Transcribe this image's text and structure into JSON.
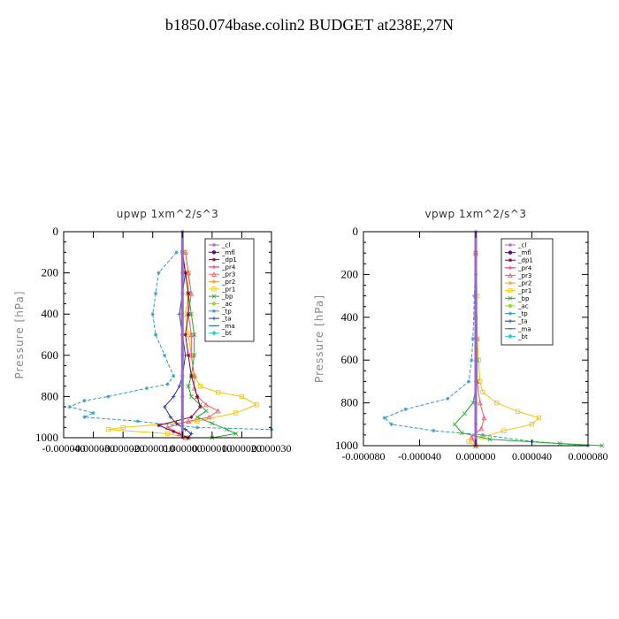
{
  "suptitle": "b1850.074base.colin2  BUDGET at238E,27N",
  "legend": [
    {
      "name": "_cl",
      "color": "#9966cc",
      "marker": "star"
    },
    {
      "name": "_mfl",
      "color": "#6b0099",
      "marker": "dot"
    },
    {
      "name": "_dp1",
      "color": "#880044",
      "marker": "star"
    },
    {
      "name": "_pr4",
      "color": "#e0185c",
      "marker": "plus"
    },
    {
      "name": "_pr3",
      "color": "#ff5566",
      "marker": "tri"
    },
    {
      "name": "_pr2",
      "color": "#ff9933",
      "marker": "star"
    },
    {
      "name": "_pr1",
      "color": "#f5c400",
      "marker": "square"
    },
    {
      "name": "_bp",
      "color": "#22aa22",
      "marker": "x"
    },
    {
      "name": "_ac",
      "color": "#99dd22",
      "marker": "dot"
    },
    {
      "name": "_tp",
      "color": "#3399cc",
      "marker": "star"
    },
    {
      "name": "_ta",
      "color": "#2233aa",
      "marker": "plus"
    },
    {
      "name": "_ma",
      "color": "#226699",
      "marker": "dash"
    },
    {
      "name": "_bt",
      "color": "#22ccdd",
      "marker": "diamond"
    }
  ],
  "chart_data": [
    {
      "type": "line",
      "title": "upwp   1xm^2/s^3",
      "ylabel": "Pressure [hPa]",
      "xlabel": "",
      "ylim": [
        1000,
        0
      ],
      "xlim": [
        -4e-05,
        3e-05
      ],
      "yticks": [
        0,
        200,
        400,
        600,
        800,
        1000
      ],
      "xtick_labels": [
        "-0.000040",
        "-0.000030",
        "-0.000020",
        "-0.000010",
        "0.000000",
        "0.000010",
        "0.000020",
        "0.000030"
      ],
      "xtick_values": [
        -4e-05,
        -3e-05,
        -2e-05,
        -1e-05,
        0,
        1e-05,
        2e-05,
        3e-05
      ],
      "legend_position": "top-right",
      "series": [
        {
          "name": "_pr1",
          "x": [
            1e-06,
            2e-06,
            2e-06,
            1e-06,
            2e-06,
            3e-06,
            4e-06,
            6e-06,
            1.2e-05,
            2e-05,
            2.5e-05,
            1.8e-05,
            5e-06,
            -2e-05,
            -2.5e-05,
            -5e-06,
            2e-06
          ],
          "y": [
            100,
            200,
            300,
            400,
            500,
            600,
            700,
            750,
            780,
            800,
            840,
            880,
            920,
            950,
            960,
            980,
            1000
          ]
        },
        {
          "name": "_pr3",
          "x": [
            1e-06,
            2e-06,
            3e-06,
            2e-06,
            3e-06,
            3e-06,
            4e-06,
            4e-06,
            5e-06,
            8e-06,
            1.2e-05,
            9e-06,
            2e-06,
            -5e-06,
            -1e-06,
            1e-06
          ],
          "y": [
            100,
            200,
            300,
            400,
            500,
            600,
            700,
            760,
            800,
            840,
            870,
            900,
            920,
            950,
            980,
            1000
          ]
        },
        {
          "name": "_bp",
          "x": [
            0.0,
            1e-06,
            2e-06,
            3e-06,
            4e-06,
            4e-06,
            3e-06,
            2e-06,
            3e-06,
            6e-06,
            8e-06,
            5e-06,
            1e-05,
            1.5e-05,
            1.8e-05,
            1e-05
          ],
          "y": [
            100,
            200,
            300,
            400,
            500,
            600,
            700,
            750,
            800,
            840,
            870,
            900,
            930,
            960,
            980,
            1000
          ]
        },
        {
          "name": "_tp",
          "x": [
            -2e-06,
            -8e-06,
            -9e-06,
            -1e-05,
            -9e-06,
            -6e-06,
            -3e-06,
            -5e-06,
            -1.2e-05,
            -2.5e-05,
            -3.3e-05,
            -3.8e-05,
            -3e-05,
            -3.3e-05,
            -1.5e-05,
            5e-06,
            3e-05
          ],
          "y": [
            100,
            200,
            300,
            400,
            500,
            600,
            700,
            740,
            760,
            800,
            820,
            850,
            880,
            900,
            920,
            950,
            960
          ]
        },
        {
          "name": "_ta",
          "x": [
            0.0,
            1e-06,
            0.0,
            -1e-06,
            0.0,
            1e-06,
            0.0,
            -1e-06,
            -3e-06,
            -6e-06,
            -4e-06,
            -2e-06,
            1e-06,
            3e-06,
            2e-06
          ],
          "y": [
            100,
            200,
            300,
            400,
            500,
            600,
            700,
            750,
            800,
            850,
            900,
            930,
            960,
            980,
            1000
          ]
        },
        {
          "name": "_dp1",
          "x": [
            0.0,
            1e-06,
            2e-06,
            2e-06,
            1e-06,
            2e-06,
            3e-06,
            5e-06,
            6e-06,
            3e-06,
            -8e-06,
            -3e-06,
            2e-06
          ],
          "y": [
            100,
            200,
            300,
            400,
            500,
            600,
            700,
            800,
            850,
            900,
            940,
            970,
            1000
          ]
        },
        {
          "name": "_cl",
          "x": [
            0.0,
            0.0,
            0.0,
            0.0,
            0.0,
            0.0,
            0.0,
            0.0,
            0.0,
            0.0,
            0.0
          ],
          "y": [
            0,
            100,
            200,
            300,
            400,
            500,
            600,
            700,
            800,
            900,
            1000
          ]
        }
      ]
    },
    {
      "type": "line",
      "title": "vpwp   1xm^2/s^3",
      "ylabel": "Pressure [hPa]",
      "xlabel": "",
      "ylim": [
        1000,
        0
      ],
      "xlim": [
        -8e-05,
        8e-05
      ],
      "yticks": [
        0,
        200,
        400,
        600,
        800,
        1000
      ],
      "xtick_labels": [
        "-0.000080",
        "-0.000040",
        "0.000000",
        "0.000040",
        "0.000080"
      ],
      "xtick_values": [
        -8e-05,
        -4e-05,
        0,
        4e-05,
        8e-05
      ],
      "legend_position": "top-right",
      "series": [
        {
          "name": "_pr1",
          "x": [
            0.0,
            1e-06,
            1e-06,
            2e-06,
            3e-06,
            5e-06,
            1.5e-05,
            3e-05,
            4.5e-05,
            4e-05,
            2e-05,
            5e-06,
            -5e-06,
            0.0
          ],
          "y": [
            100,
            300,
            500,
            600,
            700,
            750,
            800,
            840,
            870,
            900,
            930,
            960,
            980,
            1000
          ]
        },
        {
          "name": "_tp",
          "x": [
            0.0,
            -1e-06,
            -2e-06,
            -3e-06,
            -5e-06,
            -2e-05,
            -5e-05,
            -6.5e-05,
            -6e-05,
            -3e-05,
            5e-06,
            4e-05,
            8e-05
          ],
          "y": [
            100,
            300,
            500,
            600,
            700,
            780,
            830,
            870,
            900,
            930,
            950,
            980,
            1000
          ]
        },
        {
          "name": "_bp",
          "x": [
            0.0,
            0.0,
            1e-06,
            1e-06,
            -2e-06,
            -8e-06,
            -1.5e-05,
            -1e-05,
            1e-05,
            6e-05,
            9e-05
          ],
          "y": [
            100,
            400,
            600,
            700,
            800,
            850,
            900,
            940,
            970,
            990,
            1000
          ]
        },
        {
          "name": "_pr3",
          "x": [
            0.0,
            1e-06,
            1e-06,
            3e-06,
            6e-06,
            4e-06,
            -3e-06,
            0.0
          ],
          "y": [
            100,
            500,
            700,
            800,
            870,
            920,
            960,
            1000
          ]
        },
        {
          "name": "_cl",
          "x": [
            0.0,
            0.0,
            0.0,
            0.0,
            0.0,
            0.0,
            0.0,
            0.0,
            0.0,
            0.0,
            0.0
          ],
          "y": [
            0,
            100,
            200,
            300,
            400,
            500,
            600,
            700,
            800,
            900,
            1000
          ]
        }
      ]
    }
  ]
}
